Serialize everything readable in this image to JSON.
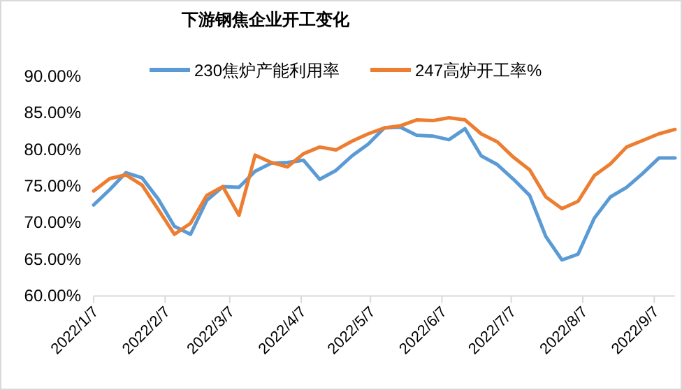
{
  "chart_data": {
    "type": "line",
    "title": "下游钢焦企业开工变化",
    "legend": "top",
    "grid": false,
    "marker": "none",
    "line_style": "solid",
    "x": [
      "2022-01-07",
      "2022-01-14",
      "2022-01-21",
      "2022-01-28",
      "2022-02-04",
      "2022-02-11",
      "2022-02-18",
      "2022-02-25",
      "2022-03-04",
      "2022-03-11",
      "2022-03-18",
      "2022-03-25",
      "2022-04-01",
      "2022-04-08",
      "2022-04-15",
      "2022-04-22",
      "2022-04-29",
      "2022-05-06",
      "2022-05-13",
      "2022-05-20",
      "2022-05-27",
      "2022-06-03",
      "2022-06-10",
      "2022-06-17",
      "2022-06-24",
      "2022-07-01",
      "2022-07-08",
      "2022-07-15",
      "2022-07-22",
      "2022-07-29",
      "2022-08-05",
      "2022-08-12",
      "2022-08-19",
      "2022-08-26",
      "2022-09-02",
      "2022-09-09",
      "2022-09-16"
    ],
    "series": [
      {
        "name": "230焦炉产能利用率",
        "color": "#5b9bd5",
        "values": [
          72.4,
          74.5,
          76.8,
          76.1,
          73.2,
          69.5,
          68.4,
          73.0,
          74.9,
          74.8,
          77.0,
          78.1,
          78.2,
          78.5,
          75.9,
          77.1,
          79.1,
          80.7,
          82.9,
          83.0,
          81.9,
          81.8,
          81.3,
          82.8,
          79.1,
          77.9,
          75.9,
          73.7,
          68.1,
          64.9,
          65.7,
          70.6,
          73.5,
          74.8,
          76.7,
          78.8,
          78.8
        ]
      },
      {
        "name": "247高炉开工率%",
        "color": "#ed7d31",
        "values": [
          74.3,
          76.0,
          76.5,
          75.1,
          71.8,
          68.4,
          69.9,
          73.7,
          74.9,
          71.0,
          79.2,
          78.2,
          77.6,
          79.4,
          80.3,
          79.9,
          81.1,
          82.1,
          82.9,
          83.2,
          84.0,
          83.9,
          84.3,
          84.0,
          82.1,
          81.0,
          78.9,
          77.2,
          73.5,
          71.9,
          72.9,
          76.4,
          78.0,
          80.3,
          81.2,
          82.1,
          82.7
        ]
      }
    ],
    "xlim": [
      "2022-01-07",
      "2022-09-16"
    ],
    "xticks": [
      {
        "value": "2022-01-07",
        "label": "2022/1/7"
      },
      {
        "value": "2022-02-07",
        "label": "2022/2/7"
      },
      {
        "value": "2022-03-07",
        "label": "2022/3/7"
      },
      {
        "value": "2022-04-07",
        "label": "2022/4/7"
      },
      {
        "value": "2022-05-07",
        "label": "2022/5/7"
      },
      {
        "value": "2022-06-07",
        "label": "2022/6/7"
      },
      {
        "value": "2022-07-07",
        "label": "2022/7/7"
      },
      {
        "value": "2022-08-07",
        "label": "2022/8/7"
      },
      {
        "value": "2022-09-07",
        "label": "2022/9/7"
      }
    ],
    "ylim": [
      60,
      90
    ],
    "yticks": [
      {
        "value": 60,
        "label": "60.00%"
      },
      {
        "value": 65,
        "label": "65.00%"
      },
      {
        "value": 70,
        "label": "70.00%"
      },
      {
        "value": 75,
        "label": "75.00%"
      },
      {
        "value": 80,
        "label": "80.00%"
      },
      {
        "value": 85,
        "label": "85.00%"
      },
      {
        "value": 90,
        "label": "90.00%"
      }
    ]
  }
}
